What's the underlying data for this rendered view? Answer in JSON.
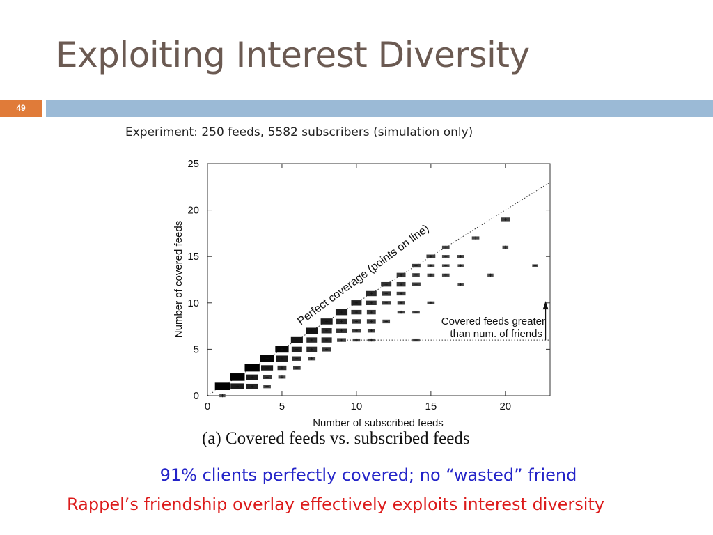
{
  "slide": {
    "title": "Exploiting Interest Diversity",
    "page_number": "49",
    "subtitle": "Experiment: 250 feeds, 5582 subscribers (simulation only)",
    "caption": "(a)  Covered feeds vs. subscribed feeds",
    "bullet1": "91% clients perfectly covered; no “wasted” friend",
    "bullet2": "Rappel’s friendship overlay effectively exploits interest diversity",
    "colors": {
      "title": "#6b5a52",
      "page_badge": "#e07b39",
      "header_bar": "#9bbad6",
      "bullet1": "#2323c8",
      "bullet2": "#dc1b1b"
    }
  },
  "chart_data": {
    "type": "scatter",
    "xlabel": "Number of subscribed feeds",
    "ylabel": "Number of covered feeds",
    "xlim": [
      0,
      23
    ],
    "ylim": [
      0,
      25
    ],
    "xticks": [
      0,
      5,
      10,
      15,
      20
    ],
    "yticks": [
      0,
      5,
      10,
      15,
      20,
      25
    ],
    "grid": false,
    "marker": "filled rectangle sized/shaded by point density",
    "reference_line": {
      "label": "Perfect coverage (points on line)",
      "style": "dotted",
      "slope": 1,
      "intercept": 0
    },
    "threshold_line": {
      "y": 6,
      "x_from": 9,
      "x_to": 23,
      "style": "dotted"
    },
    "annotation": {
      "text_line1": "Covered feeds greater",
      "text_line2": "than num. of friends",
      "arrow_x": 22.7,
      "arrow_from_y": 6,
      "arrow_to_y": 10.2
    },
    "points": [
      {
        "x": 1,
        "y": 0,
        "w": 0.4,
        "h": 0.4,
        "shade": 0.6
      },
      {
        "x": 1,
        "y": 1,
        "w": 1.0,
        "h": 1.0,
        "shade": 0.0
      },
      {
        "x": 2,
        "y": 1,
        "w": 0.9,
        "h": 0.8,
        "shade": 0.2
      },
      {
        "x": 2,
        "y": 2,
        "w": 1.0,
        "h": 1.0,
        "shade": 0.0
      },
      {
        "x": 3,
        "y": 1,
        "w": 0.8,
        "h": 0.7,
        "shade": 0.25
      },
      {
        "x": 3,
        "y": 2,
        "w": 0.8,
        "h": 0.7,
        "shade": 0.2
      },
      {
        "x": 3,
        "y": 3,
        "w": 1.0,
        "h": 1.0,
        "shade": 0.0
      },
      {
        "x": 4,
        "y": 1,
        "w": 0.5,
        "h": 0.5,
        "shade": 0.5
      },
      {
        "x": 4,
        "y": 2,
        "w": 0.6,
        "h": 0.5,
        "shade": 0.4
      },
      {
        "x": 4,
        "y": 3,
        "w": 0.8,
        "h": 0.7,
        "shade": 0.2
      },
      {
        "x": 4,
        "y": 4,
        "w": 0.9,
        "h": 0.9,
        "shade": 0.05
      },
      {
        "x": 5,
        "y": 2,
        "w": 0.5,
        "h": 0.4,
        "shade": 0.55
      },
      {
        "x": 5,
        "y": 3,
        "w": 0.6,
        "h": 0.6,
        "shade": 0.35
      },
      {
        "x": 5,
        "y": 4,
        "w": 0.8,
        "h": 0.8,
        "shade": 0.2
      },
      {
        "x": 5,
        "y": 5,
        "w": 0.9,
        "h": 0.9,
        "shade": 0.05
      },
      {
        "x": 6,
        "y": 3,
        "w": 0.5,
        "h": 0.5,
        "shade": 0.45
      },
      {
        "x": 6,
        "y": 4,
        "w": 0.6,
        "h": 0.6,
        "shade": 0.35
      },
      {
        "x": 6,
        "y": 5,
        "w": 0.7,
        "h": 0.7,
        "shade": 0.25
      },
      {
        "x": 6,
        "y": 6,
        "w": 0.8,
        "h": 0.8,
        "shade": 0.15
      },
      {
        "x": 7,
        "y": 4,
        "w": 0.5,
        "h": 0.5,
        "shade": 0.5
      },
      {
        "x": 7,
        "y": 5,
        "w": 0.7,
        "h": 0.7,
        "shade": 0.3
      },
      {
        "x": 7,
        "y": 6,
        "w": 0.7,
        "h": 0.7,
        "shade": 0.3
      },
      {
        "x": 7,
        "y": 7,
        "w": 0.8,
        "h": 0.8,
        "shade": 0.15
      },
      {
        "x": 8,
        "y": 5,
        "w": 0.6,
        "h": 0.6,
        "shade": 0.4
      },
      {
        "x": 8,
        "y": 6,
        "w": 0.7,
        "h": 0.7,
        "shade": 0.3
      },
      {
        "x": 8,
        "y": 7,
        "w": 0.7,
        "h": 0.7,
        "shade": 0.3
      },
      {
        "x": 8,
        "y": 8,
        "w": 0.8,
        "h": 0.8,
        "shade": 0.2
      },
      {
        "x": 9,
        "y": 6,
        "w": 0.6,
        "h": 0.5,
        "shade": 0.45
      },
      {
        "x": 9,
        "y": 7,
        "w": 0.7,
        "h": 0.6,
        "shade": 0.35
      },
      {
        "x": 9,
        "y": 8,
        "w": 0.7,
        "h": 0.7,
        "shade": 0.3
      },
      {
        "x": 9,
        "y": 9,
        "w": 0.8,
        "h": 0.8,
        "shade": 0.2
      },
      {
        "x": 10,
        "y": 6,
        "w": 0.5,
        "h": 0.4,
        "shade": 0.5
      },
      {
        "x": 10,
        "y": 7,
        "w": 0.6,
        "h": 0.5,
        "shade": 0.45
      },
      {
        "x": 10,
        "y": 8,
        "w": 0.6,
        "h": 0.6,
        "shade": 0.4
      },
      {
        "x": 10,
        "y": 9,
        "w": 0.7,
        "h": 0.6,
        "shade": 0.35
      },
      {
        "x": 10,
        "y": 10,
        "w": 0.7,
        "h": 0.7,
        "shade": 0.25
      },
      {
        "x": 11,
        "y": 6,
        "w": 0.5,
        "h": 0.4,
        "shade": 0.5
      },
      {
        "x": 11,
        "y": 7,
        "w": 0.5,
        "h": 0.5,
        "shade": 0.45
      },
      {
        "x": 11,
        "y": 8,
        "w": 0.6,
        "h": 0.6,
        "shade": 0.4
      },
      {
        "x": 11,
        "y": 9,
        "w": 0.6,
        "h": 0.6,
        "shade": 0.4
      },
      {
        "x": 11,
        "y": 10,
        "w": 0.7,
        "h": 0.6,
        "shade": 0.35
      },
      {
        "x": 11,
        "y": 11,
        "w": 0.7,
        "h": 0.7,
        "shade": 0.3
      },
      {
        "x": 12,
        "y": 8,
        "w": 0.5,
        "h": 0.5,
        "shade": 0.5
      },
      {
        "x": 12,
        "y": 10,
        "w": 0.6,
        "h": 0.5,
        "shade": 0.45
      },
      {
        "x": 12,
        "y": 11,
        "w": 0.6,
        "h": 0.6,
        "shade": 0.4
      },
      {
        "x": 12,
        "y": 12,
        "w": 0.7,
        "h": 0.6,
        "shade": 0.35
      },
      {
        "x": 13,
        "y": 9,
        "w": 0.5,
        "h": 0.4,
        "shade": 0.5
      },
      {
        "x": 13,
        "y": 10,
        "w": 0.5,
        "h": 0.5,
        "shade": 0.45
      },
      {
        "x": 13,
        "y": 11,
        "w": 0.6,
        "h": 0.5,
        "shade": 0.45
      },
      {
        "x": 13,
        "y": 12,
        "w": 0.6,
        "h": 0.6,
        "shade": 0.4
      },
      {
        "x": 13,
        "y": 13,
        "w": 0.6,
        "h": 0.6,
        "shade": 0.4
      },
      {
        "x": 14,
        "y": 6,
        "w": 0.5,
        "h": 0.4,
        "shade": 0.5
      },
      {
        "x": 14,
        "y": 9,
        "w": 0.5,
        "h": 0.4,
        "shade": 0.5
      },
      {
        "x": 14,
        "y": 12,
        "w": 0.6,
        "h": 0.5,
        "shade": 0.45
      },
      {
        "x": 14,
        "y": 13,
        "w": 0.5,
        "h": 0.5,
        "shade": 0.5
      },
      {
        "x": 14,
        "y": 14,
        "w": 0.6,
        "h": 0.5,
        "shade": 0.45
      },
      {
        "x": 15,
        "y": 10,
        "w": 0.5,
        "h": 0.4,
        "shade": 0.5
      },
      {
        "x": 15,
        "y": 13,
        "w": 0.5,
        "h": 0.4,
        "shade": 0.5
      },
      {
        "x": 15,
        "y": 14,
        "w": 0.5,
        "h": 0.4,
        "shade": 0.55
      },
      {
        "x": 15,
        "y": 15,
        "w": 0.6,
        "h": 0.5,
        "shade": 0.45
      },
      {
        "x": 16,
        "y": 13,
        "w": 0.5,
        "h": 0.4,
        "shade": 0.5
      },
      {
        "x": 16,
        "y": 14,
        "w": 0.5,
        "h": 0.4,
        "shade": 0.55
      },
      {
        "x": 16,
        "y": 15,
        "w": 0.5,
        "h": 0.4,
        "shade": 0.55
      },
      {
        "x": 16,
        "y": 16,
        "w": 0.5,
        "h": 0.4,
        "shade": 0.5
      },
      {
        "x": 17,
        "y": 12,
        "w": 0.4,
        "h": 0.4,
        "shade": 0.55
      },
      {
        "x": 17,
        "y": 14,
        "w": 0.4,
        "h": 0.4,
        "shade": 0.55
      },
      {
        "x": 17,
        "y": 15,
        "w": 0.5,
        "h": 0.4,
        "shade": 0.5
      },
      {
        "x": 18,
        "y": 17,
        "w": 0.5,
        "h": 0.4,
        "shade": 0.5
      },
      {
        "x": 19,
        "y": 13,
        "w": 0.4,
        "h": 0.4,
        "shade": 0.55
      },
      {
        "x": 20,
        "y": 16,
        "w": 0.4,
        "h": 0.4,
        "shade": 0.55
      },
      {
        "x": 20,
        "y": 19,
        "w": 0.6,
        "h": 0.5,
        "shade": 0.45
      },
      {
        "x": 22,
        "y": 14,
        "w": 0.4,
        "h": 0.4,
        "shade": 0.55
      }
    ]
  }
}
